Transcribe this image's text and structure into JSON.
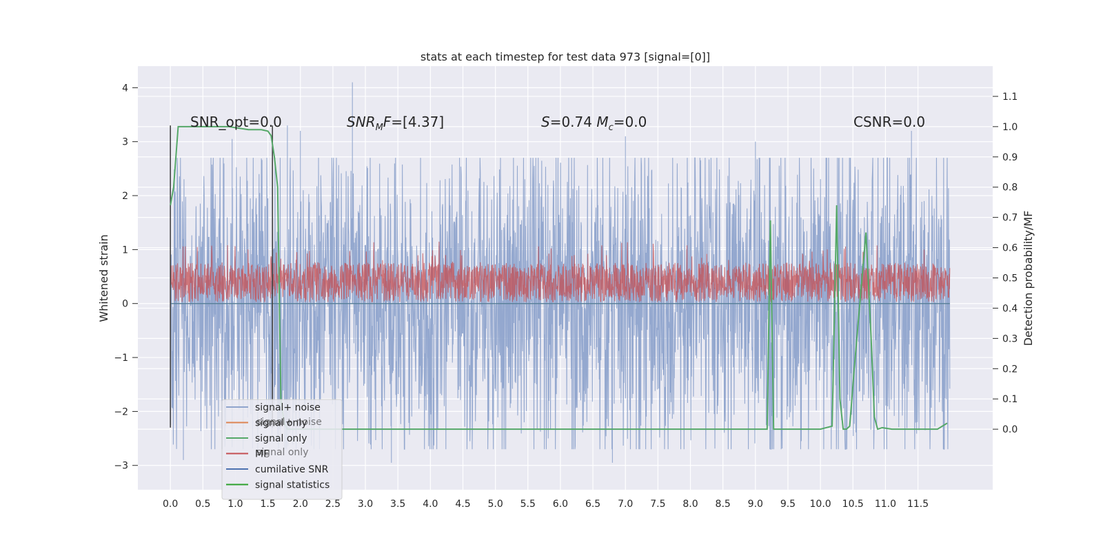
{
  "chart_data": {
    "type": "line",
    "title": "stats at each timestep for test data 973 [signal=[0]]",
    "xlabel": "",
    "ylabel": "Whitened strain",
    "y2label": "Detection probability/MF",
    "xlim": [
      -0.5,
      12.65
    ],
    "ylim": [
      -3.45,
      4.4
    ],
    "y2lim": [
      -0.2,
      1.2
    ],
    "x_ticks": [
      0.0,
      0.5,
      1.0,
      1.5,
      2.0,
      2.5,
      3.0,
      3.5,
      4.0,
      4.5,
      5.0,
      5.5,
      6.0,
      6.5,
      7.0,
      7.5,
      8.0,
      8.5,
      9.0,
      9.5,
      10.0,
      10.5,
      11.0,
      11.5
    ],
    "x_tick_labels": [
      "0.0",
      "0.5",
      "1.0",
      "1.5",
      "2.0",
      "2.5",
      "3.0",
      "3.5",
      "4.0",
      "4.5",
      "5.0",
      "5.5",
      "6.0",
      "6.5",
      "7.0",
      "7.5",
      "8.0",
      "8.5",
      "9.0",
      "9.5",
      "10.0",
      "10.5",
      "11.0",
      "11.5"
    ],
    "y_ticks": [
      -3,
      -2,
      -1,
      0,
      1,
      2,
      3,
      4
    ],
    "y_tick_labels": [
      "−3",
      "−2",
      "−1",
      "0",
      "1",
      "2",
      "3",
      "4"
    ],
    "y2_ticks": [
      0.0,
      0.1,
      0.2,
      0.3,
      0.4,
      0.5,
      0.6,
      0.7,
      0.8,
      0.9,
      1.0,
      1.1
    ],
    "y2_tick_labels": [
      "0.0",
      "0.1",
      "0.2",
      "0.3",
      "0.4",
      "0.5",
      "0.6",
      "0.7",
      "0.8",
      "0.9",
      "1.0",
      "1.1"
    ],
    "grid": true,
    "legend_placement": "lower-left",
    "annotations": [
      {
        "id": "snr-opt",
        "text": "SNR_opt=0.0"
      },
      {
        "id": "snr-mf",
        "text": "SNR_MF=[4.37]"
      },
      {
        "id": "s-mc",
        "text": "S=0.74   M_c=0.0"
      },
      {
        "id": "csnr",
        "text": "CSNR=0.0"
      }
    ],
    "series": [
      {
        "name": "signal+ noise",
        "axis": "left",
        "color": "#8fa4cc",
        "style": "dense-noise",
        "x_range": [
          0.0,
          11.99
        ],
        "typical_band": [
          -1.7,
          1.7
        ],
        "peaks": [
          {
            "x": 2.8,
            "y": 4.1
          },
          {
            "x": 1.8,
            "y": 3.3
          },
          {
            "x": 2.0,
            "y": 3.2
          },
          {
            "x": 7.0,
            "y": 3.1
          },
          {
            "x": 11.4,
            "y": 3.2
          },
          {
            "x": 9.0,
            "y": 3.0
          },
          {
            "x": 0.95,
            "y": 3.05
          },
          {
            "x": 0.2,
            "y": -2.9
          },
          {
            "x": 3.4,
            "y": -2.95
          },
          {
            "x": 6.8,
            "y": -2.95
          },
          {
            "x": 11.3,
            "y": -2.7
          }
        ]
      },
      {
        "name": "signal only",
        "axis": "left",
        "color": "#dd8452",
        "values_constant": 0.0
      },
      {
        "name": "signal only",
        "axis": "left",
        "color": "#55a868",
        "values_constant": 0.0
      },
      {
        "name": "MF",
        "axis": "right",
        "color": "#c44e52",
        "style": "dense-noise",
        "x_range": [
          0.0,
          11.99
        ],
        "typical_band": [
          0.42,
          0.55
        ],
        "max": 0.62
      },
      {
        "name": "cumilative SNR",
        "axis": "left",
        "color": "#4c72b0",
        "values_constant": 0.0
      },
      {
        "name": "signal statistics",
        "axis": "right",
        "color": "#55a868",
        "x": [
          0.0,
          0.05,
          0.12,
          0.3,
          0.6,
          0.9,
          1.2,
          1.4,
          1.5,
          1.55,
          1.6,
          1.65,
          1.7,
          1.75,
          1.8,
          2.0,
          3.0,
          5.0,
          7.0,
          9.0,
          9.18,
          9.23,
          9.28,
          9.33,
          10.0,
          10.18,
          10.25,
          10.3,
          10.35,
          10.4,
          10.45,
          10.52,
          10.6,
          10.7,
          10.78,
          10.83,
          10.88,
          10.95,
          11.1,
          11.5,
          11.8,
          11.95
        ],
        "y": [
          0.74,
          0.8,
          1.0,
          1.0,
          1.0,
          1.0,
          0.99,
          0.99,
          0.985,
          0.97,
          0.9,
          0.8,
          0.1,
          0.02,
          0.0,
          0.0,
          0.0,
          0.0,
          0.0,
          0.0,
          0.0,
          0.69,
          0.0,
          0.0,
          0.0,
          0.01,
          0.74,
          0.1,
          0.0,
          0.0,
          0.01,
          0.2,
          0.4,
          0.65,
          0.3,
          0.04,
          0.0,
          0.005,
          0.0,
          0.0,
          0.0,
          0.02
        ]
      }
    ],
    "vertical_markers": [
      {
        "x": 0.0,
        "y_range": [
          -2.3,
          3.3
        ],
        "color": "#444444"
      },
      {
        "x": 1.57,
        "y_range": [
          -2.3,
          3.3
        ],
        "color": "#444444"
      }
    ],
    "legend_entries": [
      {
        "label": "signal+ noise",
        "color": "#8fa4cc"
      },
      {
        "label": "signal only",
        "color": "#dd8452"
      },
      {
        "label": "signal only",
        "color": "#55a868"
      },
      {
        "label": "MF",
        "color": "#c44e52"
      },
      {
        "label": "cumilative SNR",
        "color": "#4c72b0"
      },
      {
        "label": "signal statistics",
        "color": "#2ca02c"
      }
    ],
    "legend_ghost_labels": [
      "signal+ noise",
      "signal only"
    ],
    "colors": {
      "plot_bg": "#eaeaf2",
      "grid": "#ffffff",
      "text": "#262626",
      "legend_bg": "#eaeaf2",
      "legend_border": "#cccccc"
    }
  }
}
